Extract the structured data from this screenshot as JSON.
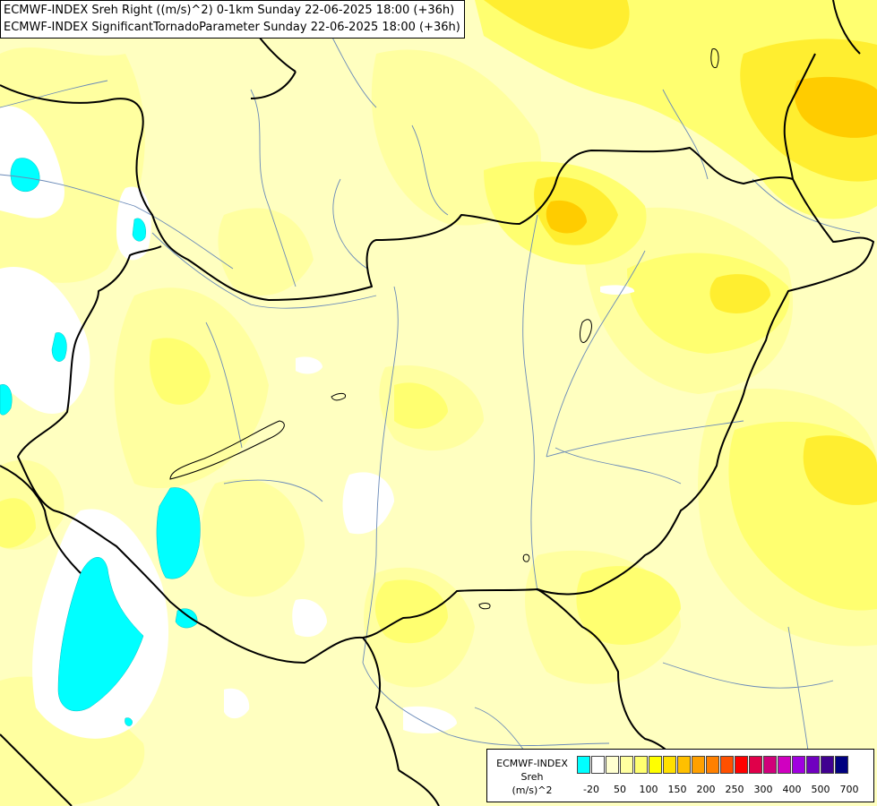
{
  "title": {
    "line1": "ECMWF-INDEX Sreh Right ((m/s)^2) 0-1km Sunday 22-06-2025 18:00 (+36h)",
    "line2": "ECMWF-INDEX SignificantTornadoParameter Sunday 22-06-2025 18:00 (+36h)"
  },
  "legend": {
    "source": "ECMWF-INDEX",
    "variable": "Sreh",
    "unit": "(m/s)^2",
    "colors": [
      "#00ffff",
      "#ffffff",
      "#ffffd0",
      "#ffffa0",
      "#ffff70",
      "#ffff00",
      "#ffe000",
      "#ffc000",
      "#ffa000",
      "#ff8000",
      "#ff5000",
      "#ff0000",
      "#e0004a",
      "#d0007a",
      "#d000c0",
      "#a000e0",
      "#7000c0",
      "#400090",
      "#000080"
    ],
    "tick_labels": [
      "-20",
      "50",
      "100",
      "150",
      "200",
      "250",
      "300",
      "400",
      "500",
      "700"
    ]
  },
  "palette": {
    "base": "#ffffc0",
    "pale": "#ffffa0",
    "medium": "#ffff70",
    "strong": "#ffee30",
    "orange": "#ffcc00",
    "cyan": "#00ffff",
    "white": "#ffffff",
    "border": "#000000",
    "river": "#6a8ab8"
  }
}
